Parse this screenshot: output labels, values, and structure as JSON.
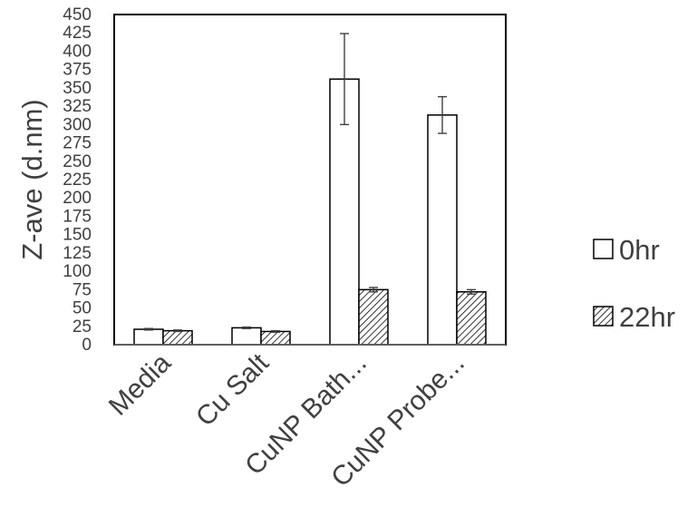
{
  "chart_data": {
    "type": "bar",
    "title": "",
    "xlabel": "",
    "ylabel": "Z-ave (d.nm)",
    "ylim": [
      0,
      450
    ],
    "ytick_step": 25,
    "categories": [
      "Media",
      "Cu Salt",
      "CuNP Bath...",
      "CuNP Probe..."
    ],
    "series": [
      {
        "name": "0hr",
        "pattern": "solid-white",
        "values": [
          21,
          23,
          362,
          313
        ],
        "errors": [
          1,
          1,
          62,
          25
        ]
      },
      {
        "name": "22hr",
        "pattern": "diagonal-hatch",
        "values": [
          19,
          18,
          75,
          72
        ],
        "errors": [
          1,
          1,
          3,
          3
        ]
      }
    ],
    "legend_position": "right",
    "grid": false,
    "colors": {
      "bar_stroke": "#000000",
      "bar_fill": "#ffffff",
      "hatch": "#000000",
      "text": "#404040",
      "error_bar": "#404040"
    }
  }
}
